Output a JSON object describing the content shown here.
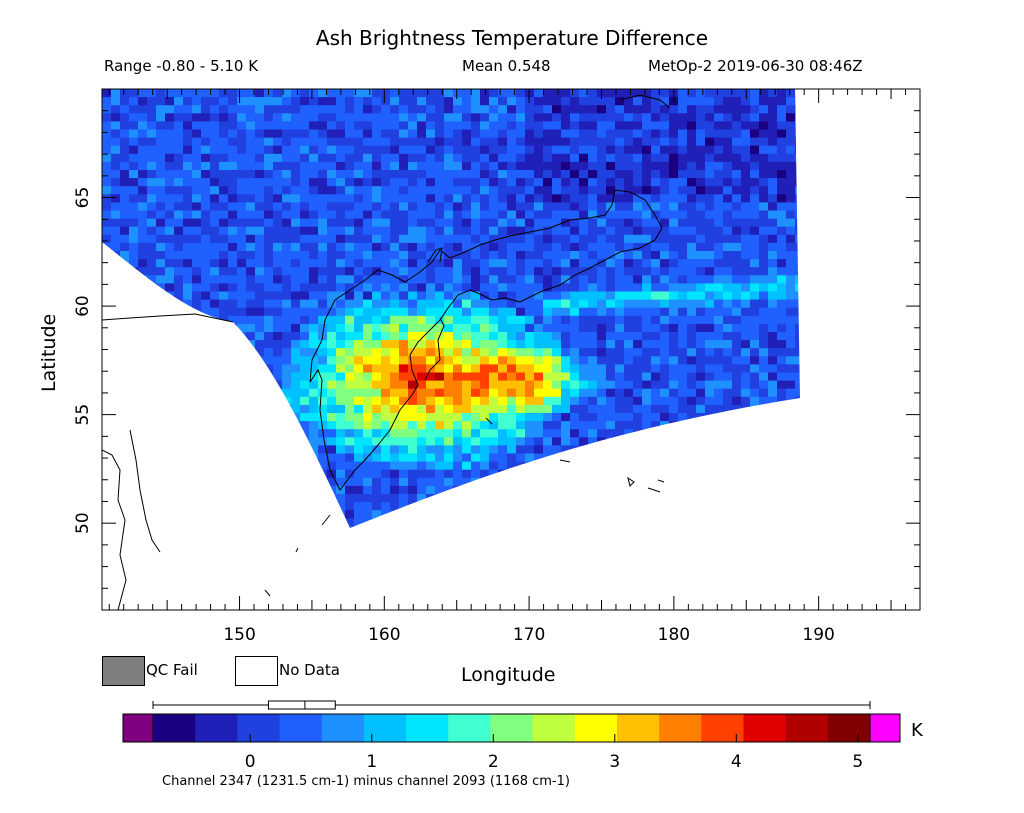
{
  "header": {
    "title": "Ash Brightness Temperature Difference",
    "range_text": "Range -0.80 - 5.10 K",
    "mean_text": "Mean 0.548",
    "satellite_text": "MetOp-2 2019-06-30 08:46Z"
  },
  "axes": {
    "xlabel": "Longitude",
    "ylabel": "Latitude",
    "x_ticks": [
      "150",
      "160",
      "170",
      "180",
      "190"
    ],
    "y_ticks": [
      "50",
      "55",
      "60",
      "65"
    ],
    "lon_range": [
      140.5,
      197
    ],
    "lat_range": [
      46,
      70
    ]
  },
  "legend": {
    "qc_fail_label": "QC Fail",
    "no_data_label": "No Data",
    "qc_fail_color": "#7f7f7f",
    "no_data_color": "#ffffff"
  },
  "colorbar": {
    "unit": "K",
    "ticks": [
      "0",
      "1",
      "2",
      "3",
      "4",
      "5"
    ],
    "range": [
      -0.8,
      5.1
    ],
    "underflow_color": "#800080",
    "overflow_color": "#ff00ff",
    "colors": [
      "#1a0080",
      "#2020b8",
      "#2040e0",
      "#2060ff",
      "#1e90ff",
      "#00c0ff",
      "#00e5ff",
      "#40ffd0",
      "#80ff80",
      "#c0ff40",
      "#ffff00",
      "#ffc000",
      "#ff8000",
      "#ff4000",
      "#e00000",
      "#b00000",
      "#800000"
    ],
    "footnote": "Channel 2347 (1231.5 cm-1) minus channel 2093 (1168 cm-1)"
  },
  "boxplot": {
    "min": -0.8,
    "q1": 0.15,
    "median": 0.45,
    "q3": 0.7,
    "max": 5.1
  },
  "features": {
    "hotspot_center": [
      162.5,
      56.8
    ],
    "secondary_plume": [
      170,
      56.8
    ],
    "swath_edge_lon": 189
  }
}
